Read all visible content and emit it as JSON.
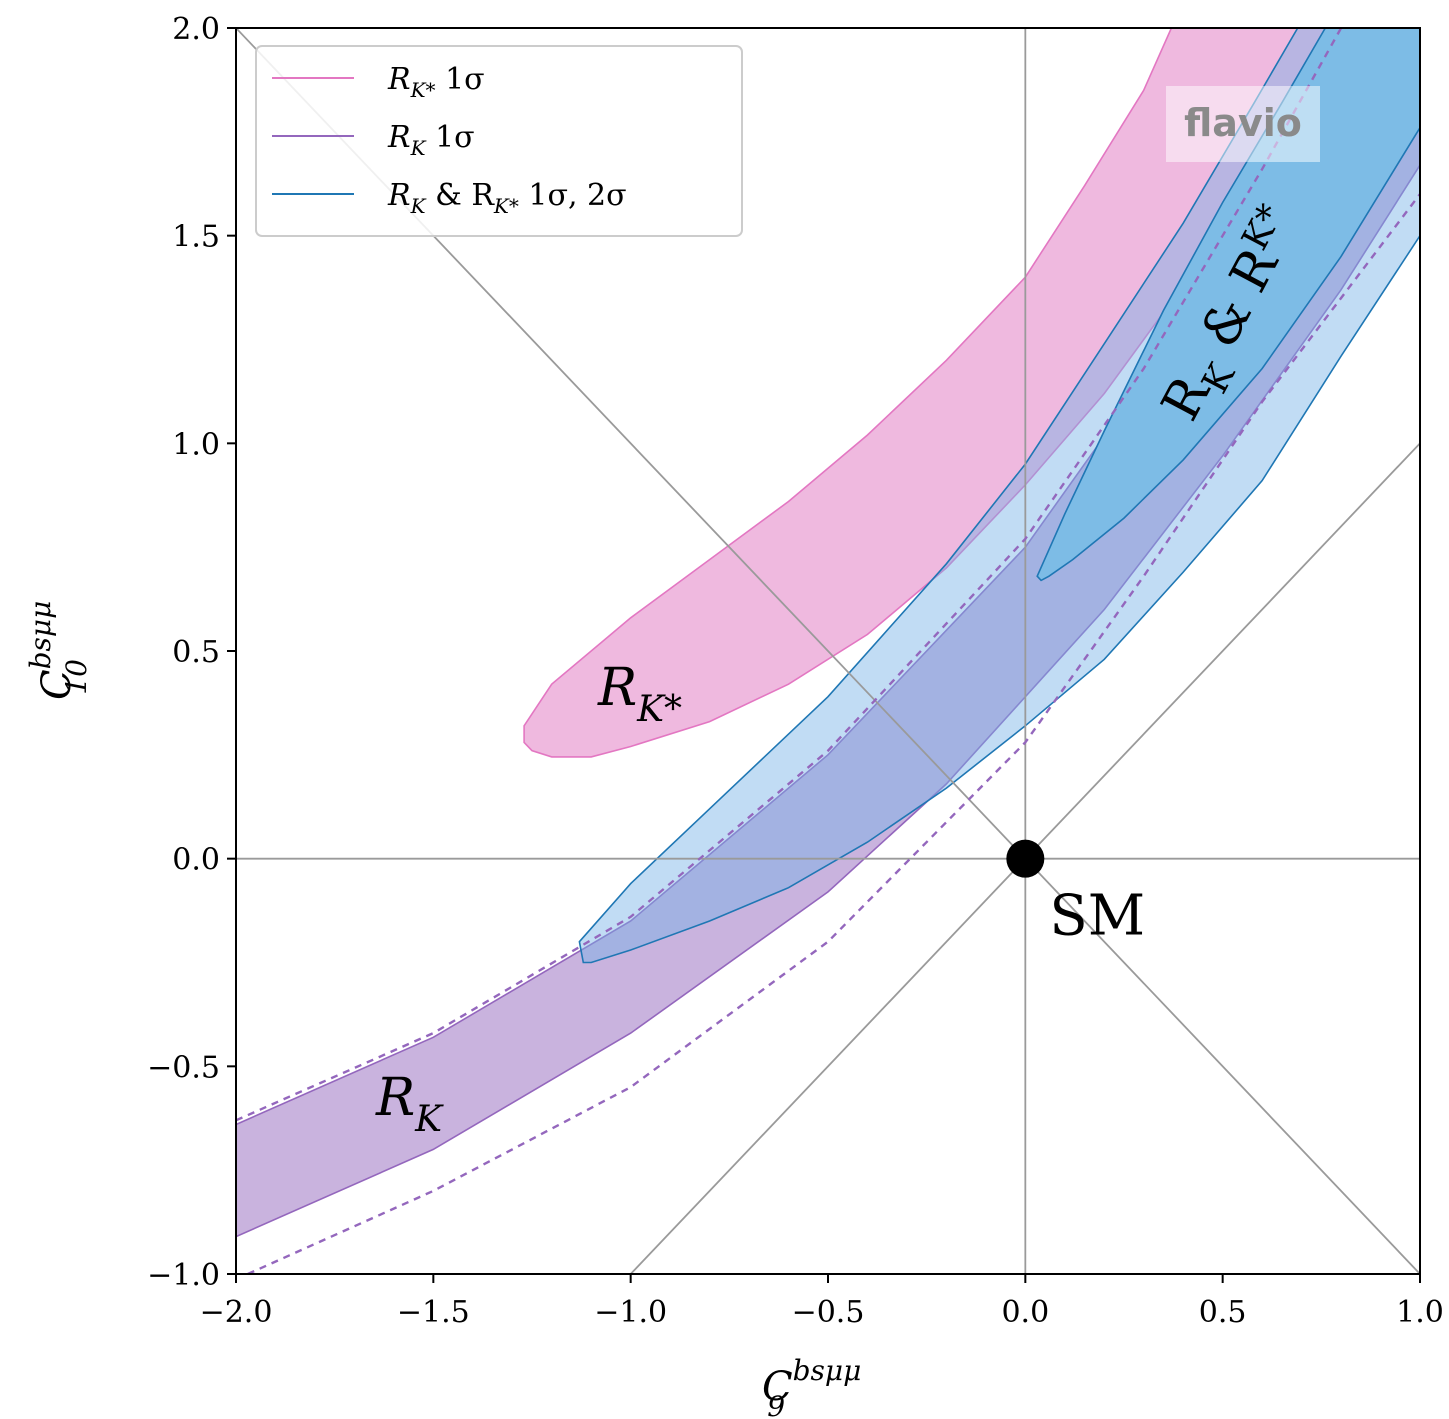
{
  "chart_data": {
    "type": "contour",
    "xlabel": "C",
    "xlabel_sup": "bsμμ",
    "xlabel_sub": "9",
    "ylabel": "C",
    "ylabel_sup": "bsμμ",
    "ylabel_sub": "10",
    "xlim": [
      -2.0,
      1.0
    ],
    "ylim": [
      -1.0,
      2.0
    ],
    "xticks": [
      "−2.0",
      "−1.5",
      "−1.0",
      "−0.5",
      "0.0",
      "0.5",
      "1.0"
    ],
    "xtick_values": [
      -2.0,
      -1.5,
      -1.0,
      -0.5,
      0.0,
      0.5,
      1.0
    ],
    "yticks": [
      "−1.0",
      "−0.5",
      "0.0",
      "0.5",
      "1.0",
      "1.5",
      "2.0"
    ],
    "ytick_values": [
      -1.0,
      -0.5,
      0.0,
      0.5,
      1.0,
      1.5,
      2.0
    ],
    "reference_lines": [
      {
        "type": "vertical",
        "x": 0.0
      },
      {
        "type": "horizontal",
        "y": 0.0
      },
      {
        "type": "diagonal",
        "from": [
          -2.0,
          2.0
        ],
        "to": [
          1.0,
          -1.0
        ]
      },
      {
        "type": "diagonal",
        "from": [
          -1.0,
          -1.0
        ],
        "to": [
          1.0,
          1.0
        ]
      }
    ],
    "legend": {
      "position": "top-left",
      "entries": [
        {
          "label_main": "R",
          "label_sub": "K*",
          "label_rest": " 1σ",
          "color": "#e377c2"
        },
        {
          "label_main": "R",
          "label_sub": "K",
          "label_rest": " 1σ",
          "color": "#9467bd"
        },
        {
          "label_main": "R",
          "label_sub": "K",
          "label_mid": " & R",
          "label_sub2": "K*",
          "label_rest": " 1σ, 2σ",
          "color": "#1f77b4"
        }
      ]
    },
    "regions": [
      {
        "name": "RKstar-1sigma",
        "color": "#e377c2",
        "fill": "#efb9df",
        "points": [
          [
            -1.27,
            0.32
          ],
          [
            -1.2,
            0.42
          ],
          [
            -1.0,
            0.58
          ],
          [
            -0.8,
            0.72
          ],
          [
            -0.6,
            0.86
          ],
          [
            -0.4,
            1.02
          ],
          [
            -0.2,
            1.2
          ],
          [
            0.0,
            1.4
          ],
          [
            0.15,
            1.62
          ],
          [
            0.3,
            1.85
          ],
          [
            0.37,
            2.0
          ],
          [
            0.94,
            2.0
          ],
          [
            0.8,
            1.85
          ],
          [
            0.6,
            1.63
          ],
          [
            0.4,
            1.38
          ],
          [
            0.2,
            1.12
          ],
          [
            0.0,
            0.9
          ],
          [
            -0.2,
            0.7
          ],
          [
            -0.4,
            0.54
          ],
          [
            -0.6,
            0.42
          ],
          [
            -0.8,
            0.33
          ],
          [
            -1.0,
            0.27
          ],
          [
            -1.1,
            0.245
          ],
          [
            -1.2,
            0.245
          ],
          [
            -1.25,
            0.26
          ],
          [
            -1.27,
            0.28
          ]
        ]
      },
      {
        "name": "RK-1sigma",
        "color": "#9467bd",
        "fill": "rgba(148,103,189,0.5)",
        "points": [
          [
            -2.0,
            -0.64
          ],
          [
            -1.5,
            -0.43
          ],
          [
            -1.0,
            -0.15
          ],
          [
            -0.5,
            0.25
          ],
          [
            0.0,
            0.75
          ],
          [
            0.3,
            1.15
          ],
          [
            0.6,
            1.62
          ],
          [
            0.82,
            2.0
          ],
          [
            1.0,
            2.0
          ],
          [
            1.0,
            1.67
          ],
          [
            0.8,
            1.37
          ],
          [
            0.5,
            0.97
          ],
          [
            0.2,
            0.6
          ],
          [
            -0.2,
            0.18
          ],
          [
            -0.5,
            -0.08
          ],
          [
            -1.0,
            -0.42
          ],
          [
            -1.5,
            -0.7
          ],
          [
            -2.0,
            -0.91
          ]
        ]
      },
      {
        "name": "RK-RKstar-2sigma",
        "color": "#1f77b4",
        "fill": "rgba(117,178,230,0.45)",
        "points": [
          [
            -1.13,
            -0.2
          ],
          [
            -1.0,
            -0.06
          ],
          [
            -0.8,
            0.12
          ],
          [
            -0.5,
            0.39
          ],
          [
            -0.2,
            0.71
          ],
          [
            0.0,
            0.95
          ],
          [
            0.2,
            1.24
          ],
          [
            0.4,
            1.53
          ],
          [
            0.58,
            1.82
          ],
          [
            0.69,
            2.0
          ],
          [
            1.0,
            2.0
          ],
          [
            1.0,
            1.5
          ],
          [
            0.8,
            1.21
          ],
          [
            0.6,
            0.91
          ],
          [
            0.4,
            0.69
          ],
          [
            0.2,
            0.48
          ],
          [
            0.0,
            0.32
          ],
          [
            -0.2,
            0.17
          ],
          [
            -0.4,
            0.04
          ],
          [
            -0.6,
            -0.07
          ],
          [
            -0.8,
            -0.15
          ],
          [
            -1.0,
            -0.22
          ],
          [
            -1.1,
            -0.25
          ],
          [
            -1.12,
            -0.25
          ]
        ]
      },
      {
        "name": "RK-RKstar-1sigma",
        "color": "#1f77b4",
        "fill": "#7dbce6",
        "points": [
          [
            0.03,
            0.68
          ],
          [
            0.1,
            0.83
          ],
          [
            0.2,
            1.03
          ],
          [
            0.35,
            1.32
          ],
          [
            0.5,
            1.58
          ],
          [
            0.65,
            1.82
          ],
          [
            0.76,
            2.0
          ],
          [
            1.0,
            2.0
          ],
          [
            1.0,
            1.76
          ],
          [
            0.8,
            1.45
          ],
          [
            0.6,
            1.18
          ],
          [
            0.4,
            0.96
          ],
          [
            0.25,
            0.82
          ],
          [
            0.12,
            0.72
          ],
          [
            0.06,
            0.68
          ],
          [
            0.04,
            0.67
          ]
        ]
      }
    ],
    "dashed_curves": [
      {
        "name": "RK-2sigma-upper",
        "color": "#9467bd",
        "points": [
          [
            -2.0,
            -0.63
          ],
          [
            -1.5,
            -0.42
          ],
          [
            -1.0,
            -0.14
          ],
          [
            -0.5,
            0.26
          ],
          [
            0.0,
            0.77
          ],
          [
            0.3,
            1.18
          ],
          [
            0.6,
            1.66
          ],
          [
            0.8,
            2.0
          ]
        ]
      },
      {
        "name": "RK-2sigma-lower",
        "color": "#9467bd",
        "points": [
          [
            -1.97,
            -1.0
          ],
          [
            -1.5,
            -0.8
          ],
          [
            -1.0,
            -0.55
          ],
          [
            -0.5,
            -0.2
          ],
          [
            0.0,
            0.28
          ],
          [
            0.3,
            0.68
          ],
          [
            0.6,
            1.1
          ],
          [
            0.8,
            1.35
          ],
          [
            1.0,
            1.6
          ]
        ]
      }
    ],
    "points": [
      {
        "name": "SM",
        "x": 0.0,
        "y": 0.0,
        "label": "SM"
      }
    ],
    "annotations": [
      {
        "name": "RK",
        "text": "R",
        "sub": "K"
      },
      {
        "name": "RKstar",
        "text": "R",
        "sub": "K*"
      },
      {
        "name": "RK-and-RKstar",
        "text": "R",
        "sub": "K",
        "mid": " & R",
        "sub2": "K*"
      }
    ],
    "watermark": "flavio"
  }
}
